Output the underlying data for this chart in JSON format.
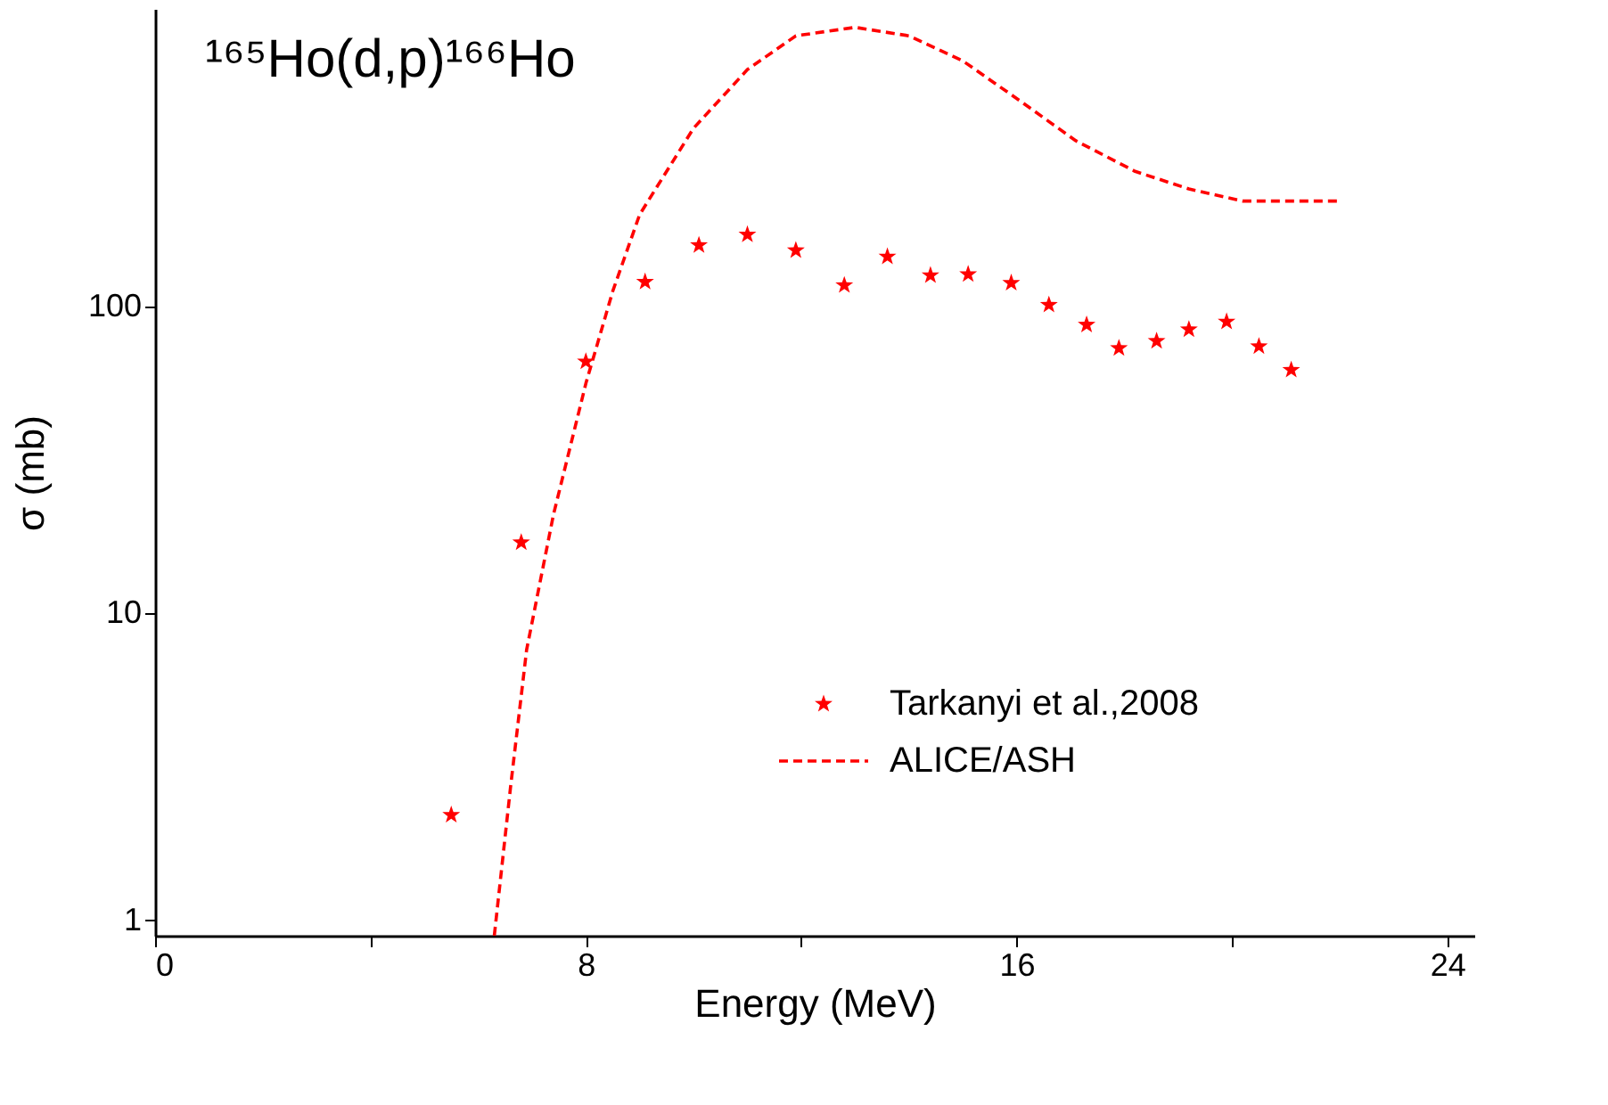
{
  "chart_data": {
    "type": "scatter",
    "title": "¹⁶⁵Ho(d,p)¹⁶⁶Ho",
    "xlabel": "Energy (MeV)",
    "ylabel": "σ (mb)",
    "xlim": [
      0,
      24.5
    ],
    "ylim": [
      0.89,
      930
    ],
    "log": "y",
    "xticks": [
      0,
      {
        "value": 4,
        "label": null
      },
      8,
      {
        "value": 12,
        "label": null
      },
      16,
      {
        "value": 20,
        "label": null
      },
      24
    ],
    "yticks": [
      1,
      10,
      100
    ],
    "grid": false,
    "legend": "right",
    "series": [
      {
        "name": "Tarkanyi et al.,2008",
        "marker": "star",
        "color": "#ff0000",
        "x": [
          5.5,
          6.8,
          8.0,
          9.1,
          10.1,
          11.0,
          11.9,
          12.8,
          13.6,
          14.4,
          15.1,
          15.9,
          16.6,
          17.3,
          17.9,
          18.6,
          19.2,
          19.9,
          20.5,
          21.1
        ],
        "values": [
          2.2,
          17,
          66,
          120,
          158,
          171,
          152,
          117,
          145,
          126,
          127,
          119,
          101,
          87,
          73,
          77,
          84,
          89,
          74,
          62
        ]
      },
      {
        "name": "ALICE/ASH",
        "type": "line",
        "line_style": "dashed",
        "color": "#ff0000",
        "x": [
          6.3,
          6.6,
          6.9,
          7.4,
          8.0,
          8.5,
          9.0,
          10.0,
          11.0,
          11.9,
          13.0,
          14.0,
          15.0,
          16.0,
          17.1,
          18.2,
          19.2,
          20.2,
          21.0,
          22.0
        ],
        "values": [
          0.89,
          2.7,
          7.6,
          21,
          56,
          112,
          199,
          380,
          590,
          760,
          810,
          760,
          630,
          475,
          346,
          275,
          241,
          220,
          220,
          220
        ]
      }
    ]
  }
}
